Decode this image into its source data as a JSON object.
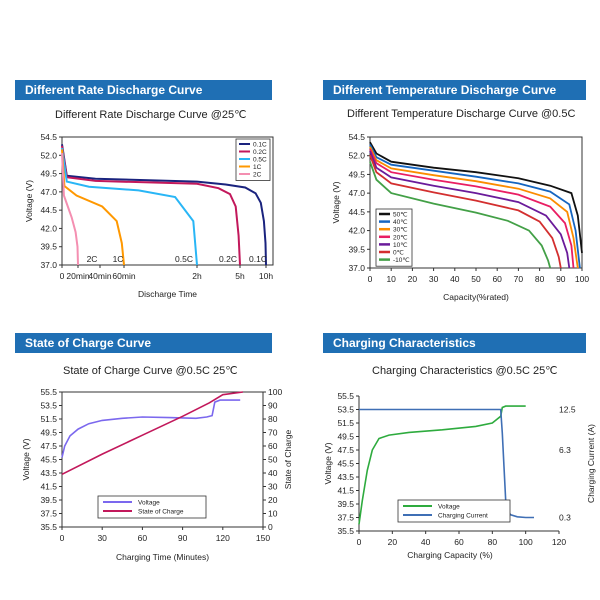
{
  "colors": {
    "banner": "#1f6fb4",
    "banner_text": "#ffffff"
  },
  "panels": [
    {
      "banner": "Different Rate Discharge Curve",
      "subtitle": "Different Rate Discharge Curve @25℃"
    },
    {
      "banner": "Different Temperature Discharge Curve",
      "subtitle": "Different Temperature Discharge Curve @0.5C"
    },
    {
      "banner": "State of Charge Curve",
      "subtitle": "State of Charge Curve @0.5C 25℃"
    },
    {
      "banner": "Charging Characteristics",
      "subtitle": "Charging Characteristics @0.5C 25℃"
    }
  ],
  "chart_data": [
    {
      "type": "line",
      "title": "Different Rate Discharge Curve @25℃",
      "xlabel": "Discharge Time",
      "ylabel": "Voltage (V)",
      "ylim": [
        37.0,
        54.5
      ],
      "yticks": [
        "54.5",
        "52.0",
        "49.5",
        "47.0",
        "44.5",
        "42.0",
        "39.5",
        "37.0"
      ],
      "xtick_labels": [
        "0",
        "20min",
        "40min",
        "60min",
        "2h",
        "5h",
        "10h"
      ],
      "xtick_values": [
        0,
        0.33,
        0.67,
        1.0,
        2.0,
        5.0,
        10.0
      ],
      "x_scale": "non-linear time",
      "curve_end_labels": [
        "2C",
        "1C",
        "0.5C",
        "0.2C",
        "0.1C"
      ],
      "legend": {
        "placement": "top-right"
      },
      "grid": false,
      "series": [
        {
          "name": "0.1C",
          "color": "#1a237e",
          "x": [
            0,
            0.1,
            0.6,
            2,
            4,
            6,
            8,
            9,
            9.6,
            9.9,
            10
          ],
          "y": [
            53.5,
            49.2,
            48.8,
            48.4,
            48.0,
            47.6,
            46.8,
            45.5,
            43.0,
            40.0,
            37.0
          ]
        },
        {
          "name": "0.2C",
          "color": "#c2185b",
          "x": [
            0,
            0.1,
            0.6,
            2,
            3.5,
            4.3,
            4.7,
            4.9,
            5.0
          ],
          "y": [
            53.3,
            49.0,
            48.5,
            48.1,
            47.5,
            46.7,
            45.0,
            41.0,
            37.0
          ]
        },
        {
          "name": "0.5C",
          "color": "#29b6f6",
          "x": [
            0,
            0.1,
            0.5,
            1.2,
            1.7,
            1.95,
            2.0
          ],
          "y": [
            53.0,
            48.4,
            47.7,
            47.2,
            46.3,
            43.0,
            37.0
          ]
        },
        {
          "name": "1C",
          "color": "#ff9800",
          "x": [
            0,
            0.05,
            0.3,
            0.7,
            0.9,
            0.97,
            1.0
          ],
          "y": [
            52.8,
            47.8,
            46.5,
            45.0,
            43.0,
            40.0,
            37.0
          ]
        },
        {
          "name": "2C",
          "color": "#f48fb1",
          "x": [
            0,
            0.04,
            0.12,
            0.2,
            0.28,
            0.32,
            0.33
          ],
          "y": [
            52.3,
            46.5,
            45.0,
            43.5,
            41.5,
            39.5,
            37.0
          ]
        }
      ]
    },
    {
      "type": "line",
      "title": "Different Temperature Discharge Curve @0.5C",
      "xlabel": "Capacity(%rated)",
      "ylabel": "Voltage (V)",
      "xlim": [
        0,
        100
      ],
      "ylim": [
        37.0,
        54.5
      ],
      "xticks": [
        "0",
        "10",
        "20",
        "30",
        "40",
        "50",
        "60",
        "70",
        "80",
        "90",
        "100"
      ],
      "yticks": [
        "54.5",
        "52.0",
        "49.5",
        "47.0",
        "44.5",
        "42.0",
        "39.5",
        "37.0"
      ],
      "legend": {
        "placement": "bottom-left"
      },
      "grid": false,
      "series": [
        {
          "name": "50℃",
          "color": "#111111",
          "x": [
            0,
            3,
            10,
            30,
            50,
            70,
            85,
            95,
            98,
            100
          ],
          "y": [
            53.8,
            52.3,
            51.2,
            50.4,
            49.8,
            49.0,
            48.0,
            47.0,
            44.0,
            39.0
          ]
        },
        {
          "name": "40℃",
          "color": "#1565c0",
          "x": [
            0,
            3,
            10,
            30,
            50,
            70,
            85,
            94,
            97,
            99
          ],
          "y": [
            53.5,
            51.8,
            50.8,
            50.0,
            49.2,
            48.3,
            47.2,
            45.5,
            42.0,
            37.0
          ]
        },
        {
          "name": "30℃",
          "color": "#fb8c00",
          "x": [
            0,
            3,
            10,
            30,
            50,
            70,
            85,
            93,
            96,
            98
          ],
          "y": [
            53.2,
            51.4,
            50.3,
            49.4,
            48.6,
            47.6,
            46.3,
            44.5,
            41.0,
            37.0
          ]
        },
        {
          "name": "20℃",
          "color": "#e91e63",
          "x": [
            0,
            3,
            10,
            30,
            50,
            70,
            85,
            92,
            95,
            96
          ],
          "y": [
            52.9,
            51.0,
            49.8,
            48.8,
            47.9,
            46.8,
            45.2,
            43.0,
            40.0,
            37.0
          ]
        },
        {
          "name": "10℃",
          "color": "#6a1b9a",
          "x": [
            0,
            3,
            10,
            30,
            50,
            70,
            83,
            90,
            93,
            94
          ],
          "y": [
            52.6,
            50.4,
            49.1,
            48.0,
            47.0,
            45.8,
            44.0,
            41.5,
            39.0,
            37.0
          ]
        },
        {
          "name": "0℃",
          "color": "#d32f2f",
          "x": [
            0,
            3,
            10,
            30,
            50,
            70,
            80,
            86,
            89,
            90
          ],
          "y": [
            52.1,
            49.8,
            48.3,
            47.1,
            46.0,
            44.7,
            43.2,
            41.0,
            38.5,
            37.0
          ]
        },
        {
          "name": "-10℃",
          "color": "#43a047",
          "x": [
            0,
            3,
            10,
            30,
            50,
            65,
            75,
            81,
            84,
            85
          ],
          "y": [
            51.2,
            48.8,
            47.0,
            45.6,
            44.4,
            43.3,
            42.0,
            40.0,
            38.0,
            37.0
          ]
        }
      ]
    },
    {
      "type": "line",
      "title": "State of Charge Curve @0.5C 25℃",
      "xlabel": "Charging Time (Minutes)",
      "ylabel": "Voltage (V)",
      "y2label": "State of Charge",
      "xlim": [
        0,
        150
      ],
      "ylim": [
        35.5,
        55.5
      ],
      "y2lim": [
        0,
        100
      ],
      "xticks": [
        "0",
        "30",
        "60",
        "90",
        "120",
        "150"
      ],
      "yticks": [
        "55.5",
        "53.5",
        "51.5",
        "49.5",
        "47.5",
        "45.5",
        "43.5",
        "41.5",
        "39.5",
        "37.5",
        "35.5"
      ],
      "y2ticks": [
        "100",
        "90",
        "80",
        "70",
        "60",
        "50",
        "40",
        "30",
        "20",
        "10",
        "0"
      ],
      "legend": {
        "placement": "bottom-left"
      },
      "grid": false,
      "series": [
        {
          "name": "Voltage",
          "axis": "left",
          "color": "#7b68ee",
          "x": [
            0,
            2,
            6,
            12,
            20,
            30,
            45,
            60,
            80,
            100,
            108,
            112,
            114,
            118,
            125,
            133
          ],
          "y": [
            45.8,
            47.5,
            49.0,
            50.0,
            50.8,
            51.3,
            51.6,
            51.8,
            51.7,
            51.6,
            51.8,
            52.0,
            54.0,
            54.3,
            54.3,
            54.3
          ]
        },
        {
          "name": "State of Charge",
          "axis": "right",
          "color": "#c2185b",
          "x": [
            0,
            30,
            60,
            90,
            110,
            120,
            135
          ],
          "y": [
            39,
            54,
            68,
            82,
            92,
            98,
            100
          ]
        }
      ]
    },
    {
      "type": "line",
      "title": "Charging Characteristics @0.5C 25℃",
      "xlabel": "Charging Capacity (%)",
      "ylabel": "Voltage (V)",
      "y2label": "Charging Current (A)",
      "xlim": [
        0,
        120
      ],
      "ylim": [
        35.5,
        55.5
      ],
      "xticks": [
        "0",
        "20",
        "40",
        "60",
        "80",
        "100",
        "120"
      ],
      "yticks": [
        "55.5",
        "53.5",
        "51.5",
        "49.5",
        "47.5",
        "45.5",
        "43.5",
        "41.5",
        "39.5",
        "37.5",
        "35.5"
      ],
      "y2ticks": [
        "12.5",
        "6.3",
        "0.3"
      ],
      "legend": {
        "placement": "bottom-left"
      },
      "grid": false,
      "series": [
        {
          "name": "Voltage",
          "color": "#2eab3e",
          "x": [
            0,
            2,
            5,
            8,
            12,
            18,
            30,
            50,
            70,
            80,
            85,
            86,
            88,
            100
          ],
          "y": [
            36.5,
            40.0,
            44.5,
            47.5,
            49.2,
            49.7,
            50.1,
            50.5,
            51.0,
            51.5,
            52.5,
            53.8,
            54.0,
            54.0
          ]
        },
        {
          "name": "Charging Current",
          "color": "#3f6fb5",
          "x": [
            0,
            10,
            20,
            40,
            60,
            80,
            85,
            86,
            87,
            88,
            89,
            91,
            95,
            100,
            105
          ],
          "y": [
            53.5,
            53.5,
            53.5,
            53.5,
            53.5,
            53.5,
            53.5,
            50.0,
            45.0,
            40.0,
            38.5,
            37.9,
            37.6,
            37.5,
            37.5
          ]
        }
      ]
    }
  ]
}
